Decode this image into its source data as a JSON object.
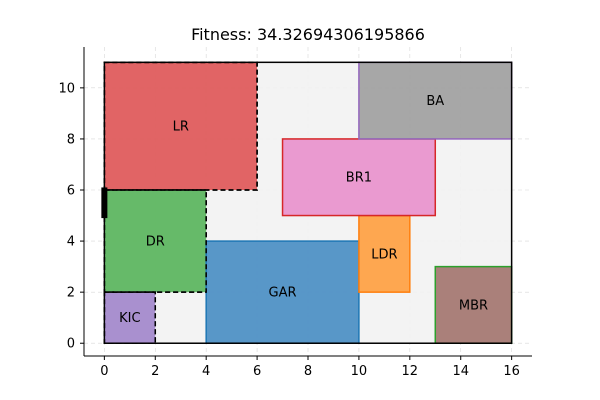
{
  "chart_data": {
    "type": "floorplan",
    "title": "Fitness: 34.32694306195866",
    "xlim": [
      -0.8,
      16.8
    ],
    "ylim": [
      -0.5,
      11.6
    ],
    "xticks": [
      0,
      2,
      4,
      6,
      8,
      10,
      12,
      14,
      16
    ],
    "yticks": [
      0,
      2,
      4,
      6,
      8,
      10
    ],
    "grid": true,
    "boundary": {
      "x": [
        0,
        16
      ],
      "y": [
        0,
        11
      ],
      "fill": "#f2f2f2",
      "edge": "#000000"
    },
    "door": {
      "x": 0,
      "y0": 4.9,
      "y1": 6.1,
      "color": "#000000"
    },
    "rooms": [
      {
        "name": "LR",
        "x0": 0,
        "y0": 6,
        "x1": 6,
        "y1": 11,
        "fill": "#dd4a4b",
        "edge": "#d62728",
        "dashed": true
      },
      {
        "name": "DR",
        "x0": 0,
        "y0": 2,
        "x1": 4,
        "y1": 6,
        "fill": "#4caf50",
        "edge": "#2ca02c",
        "dashed": true
      },
      {
        "name": "KIC",
        "x0": 0,
        "y0": 0,
        "x1": 2,
        "y1": 2,
        "fill": "#9b7ec8",
        "edge": "#9467bd",
        "dashed": true
      },
      {
        "name": "GAR",
        "x0": 4,
        "y0": 0,
        "x1": 10,
        "y1": 4,
        "fill": "#3c86bf",
        "edge": "#1f77b4",
        "dashed": false
      },
      {
        "name": "LDR",
        "x0": 10,
        "y0": 2,
        "x1": 12,
        "y1": 5,
        "fill": "#ff9933",
        "edge": "#ff7f0e",
        "dashed": false
      },
      {
        "name": "BR1",
        "x0": 7,
        "y0": 5,
        "x1": 13,
        "y1": 8,
        "fill": "#e78ac9",
        "edge": "#d62728",
        "dashed": false
      },
      {
        "name": "BA",
        "x0": 10,
        "y0": 8,
        "x1": 16,
        "y1": 11,
        "fill": "#999999",
        "edge": "#9467bd",
        "dashed": false
      },
      {
        "name": "MBR",
        "x0": 13,
        "y0": 0,
        "x1": 16,
        "y1": 3,
        "fill": "#9c6b64",
        "edge": "#2ca02c",
        "dashed": false
      }
    ]
  }
}
